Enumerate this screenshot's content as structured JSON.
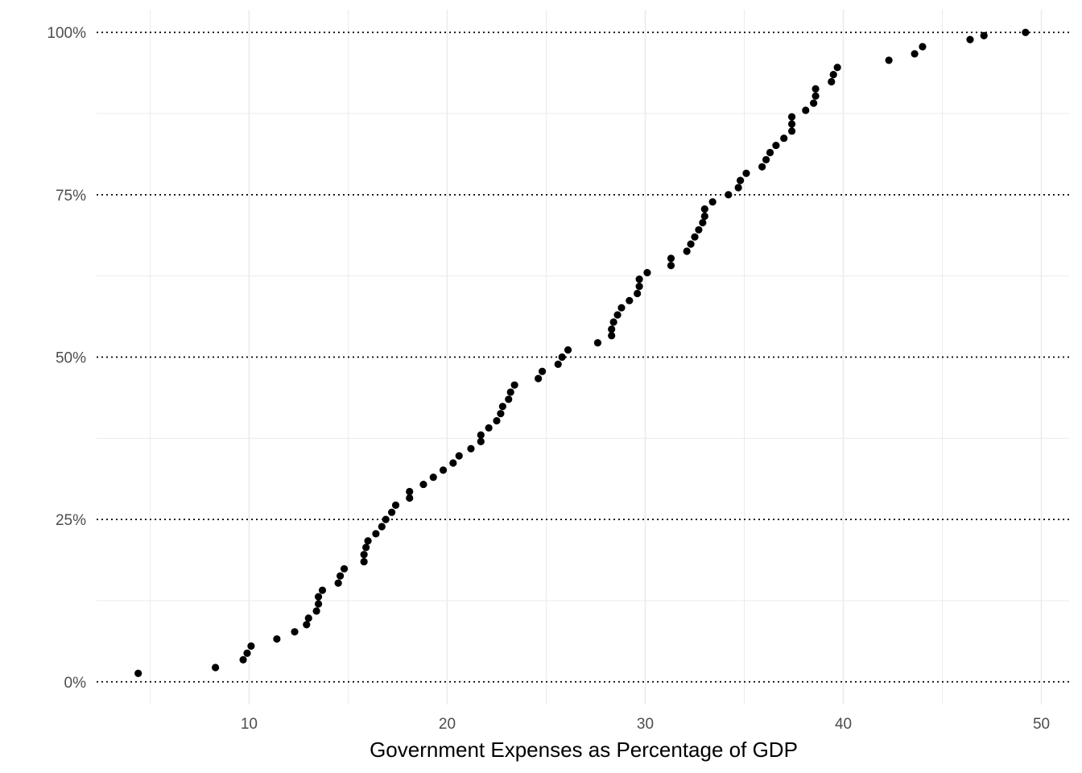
{
  "chart_data": {
    "type": "scatter",
    "title": "",
    "xlabel": "Government Expenses as Percentage of GDP",
    "ylabel": "",
    "xlim": [
      2.3,
      51.4
    ],
    "ylim": [
      -0.035,
      1.035
    ],
    "x_ticks": [
      10,
      20,
      30,
      40,
      50
    ],
    "x_minor_ticks": [
      5,
      15,
      25,
      35,
      45
    ],
    "y_ticks": [
      0,
      0.25,
      0.5,
      0.75,
      1.0
    ],
    "y_tick_labels": [
      "0%",
      "25%",
      "50%",
      "75%",
      "100%"
    ],
    "y_minor_ticks": [
      0.125,
      0.375,
      0.625,
      0.875
    ],
    "major_y_gridline_style": "dotted",
    "grid": true,
    "point_color": "#000000",
    "points": [
      {
        "x": 4.4,
        "y": 0.013
      },
      {
        "x": 8.3,
        "y": 0.022
      },
      {
        "x": 9.7,
        "y": 0.034
      },
      {
        "x": 9.9,
        "y": 0.044
      },
      {
        "x": 10.1,
        "y": 0.055
      },
      {
        "x": 11.4,
        "y": 0.066
      },
      {
        "x": 12.3,
        "y": 0.077
      },
      {
        "x": 12.9,
        "y": 0.088
      },
      {
        "x": 13.0,
        "y": 0.098
      },
      {
        "x": 13.4,
        "y": 0.109
      },
      {
        "x": 13.5,
        "y": 0.12
      },
      {
        "x": 13.5,
        "y": 0.131
      },
      {
        "x": 13.7,
        "y": 0.141
      },
      {
        "x": 14.5,
        "y": 0.152
      },
      {
        "x": 14.6,
        "y": 0.163
      },
      {
        "x": 14.8,
        "y": 0.174
      },
      {
        "x": 15.8,
        "y": 0.185
      },
      {
        "x": 15.8,
        "y": 0.196
      },
      {
        "x": 15.9,
        "y": 0.207
      },
      {
        "x": 16.0,
        "y": 0.217
      },
      {
        "x": 16.4,
        "y": 0.228
      },
      {
        "x": 16.7,
        "y": 0.239
      },
      {
        "x": 16.9,
        "y": 0.25
      },
      {
        "x": 17.2,
        "y": 0.261
      },
      {
        "x": 17.4,
        "y": 0.272
      },
      {
        "x": 18.1,
        "y": 0.283
      },
      {
        "x": 18.1,
        "y": 0.293
      },
      {
        "x": 18.8,
        "y": 0.304
      },
      {
        "x": 19.3,
        "y": 0.315
      },
      {
        "x": 19.8,
        "y": 0.326
      },
      {
        "x": 20.3,
        "y": 0.337
      },
      {
        "x": 20.6,
        "y": 0.348
      },
      {
        "x": 21.2,
        "y": 0.359
      },
      {
        "x": 21.7,
        "y": 0.37
      },
      {
        "x": 21.7,
        "y": 0.38
      },
      {
        "x": 22.1,
        "y": 0.391
      },
      {
        "x": 22.5,
        "y": 0.402
      },
      {
        "x": 22.7,
        "y": 0.413
      },
      {
        "x": 22.8,
        "y": 0.424
      },
      {
        "x": 23.1,
        "y": 0.435
      },
      {
        "x": 23.2,
        "y": 0.446
      },
      {
        "x": 23.4,
        "y": 0.457
      },
      {
        "x": 24.6,
        "y": 0.467
      },
      {
        "x": 24.8,
        "y": 0.478
      },
      {
        "x": 25.6,
        "y": 0.489
      },
      {
        "x": 25.8,
        "y": 0.5
      },
      {
        "x": 26.1,
        "y": 0.511
      },
      {
        "x": 27.6,
        "y": 0.522
      },
      {
        "x": 28.3,
        "y": 0.533
      },
      {
        "x": 28.3,
        "y": 0.543
      },
      {
        "x": 28.4,
        "y": 0.554
      },
      {
        "x": 28.6,
        "y": 0.565
      },
      {
        "x": 28.8,
        "y": 0.576
      },
      {
        "x": 29.2,
        "y": 0.587
      },
      {
        "x": 29.6,
        "y": 0.598
      },
      {
        "x": 29.7,
        "y": 0.609
      },
      {
        "x": 29.7,
        "y": 0.62
      },
      {
        "x": 30.1,
        "y": 0.63
      },
      {
        "x": 31.3,
        "y": 0.641
      },
      {
        "x": 31.3,
        "y": 0.652
      },
      {
        "x": 32.1,
        "y": 0.663
      },
      {
        "x": 32.3,
        "y": 0.674
      },
      {
        "x": 32.5,
        "y": 0.685
      },
      {
        "x": 32.7,
        "y": 0.696
      },
      {
        "x": 32.9,
        "y": 0.707
      },
      {
        "x": 33.0,
        "y": 0.717
      },
      {
        "x": 33.0,
        "y": 0.728
      },
      {
        "x": 33.4,
        "y": 0.739
      },
      {
        "x": 34.2,
        "y": 0.75
      },
      {
        "x": 34.7,
        "y": 0.761
      },
      {
        "x": 34.8,
        "y": 0.772
      },
      {
        "x": 35.1,
        "y": 0.783
      },
      {
        "x": 35.9,
        "y": 0.793
      },
      {
        "x": 36.1,
        "y": 0.804
      },
      {
        "x": 36.3,
        "y": 0.815
      },
      {
        "x": 36.6,
        "y": 0.826
      },
      {
        "x": 37.0,
        "y": 0.837
      },
      {
        "x": 37.4,
        "y": 0.848
      },
      {
        "x": 37.4,
        "y": 0.859
      },
      {
        "x": 37.4,
        "y": 0.87
      },
      {
        "x": 38.1,
        "y": 0.88
      },
      {
        "x": 38.5,
        "y": 0.891
      },
      {
        "x": 38.6,
        "y": 0.902
      },
      {
        "x": 38.6,
        "y": 0.913
      },
      {
        "x": 39.4,
        "y": 0.924
      },
      {
        "x": 39.5,
        "y": 0.935
      },
      {
        "x": 39.7,
        "y": 0.946
      },
      {
        "x": 42.3,
        "y": 0.957
      },
      {
        "x": 43.6,
        "y": 0.967
      },
      {
        "x": 44.0,
        "y": 0.978
      },
      {
        "x": 46.4,
        "y": 0.989
      },
      {
        "x": 47.1,
        "y": 0.995
      },
      {
        "x": 49.2,
        "y": 1.0
      }
    ]
  }
}
